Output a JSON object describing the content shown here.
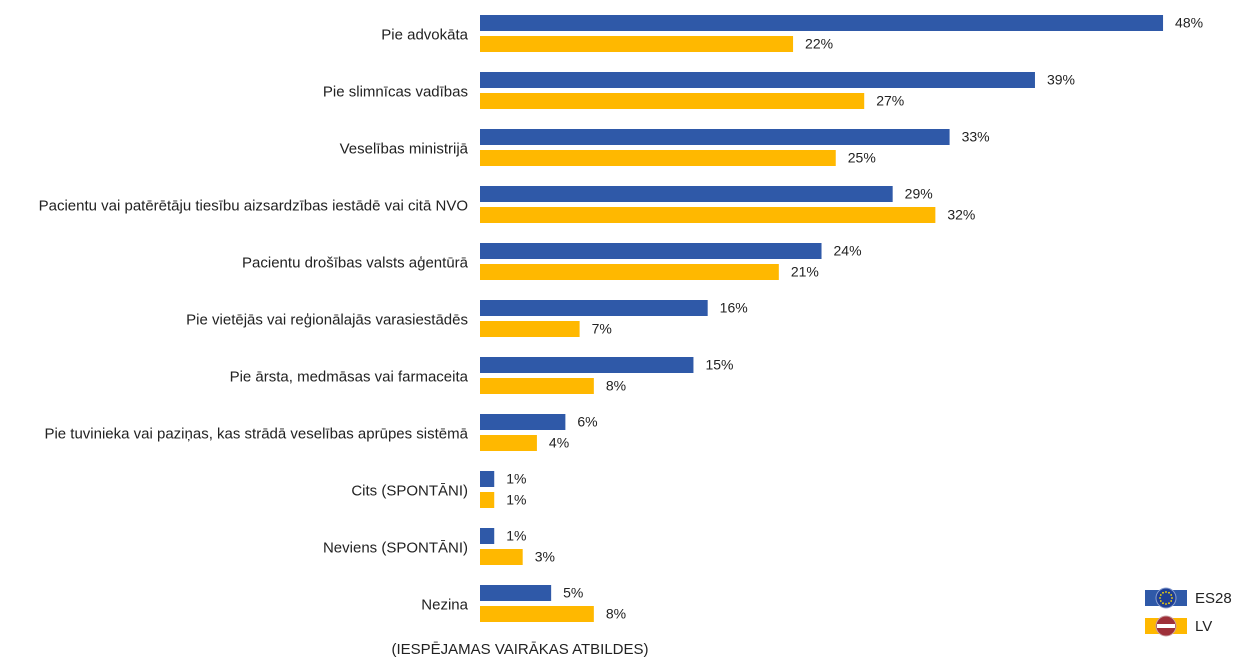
{
  "chart_data": {
    "type": "bar",
    "orientation": "horizontal",
    "categories": [
      "Pie advokāta",
      "Pie slimnīcas vadības",
      "Veselības ministrijā",
      "Pacientu vai patērētāju tiesību aizsardzības iestādē vai citā NVO",
      "Pacientu drošības valsts aģentūrā",
      "Pie vietējās vai reģionālajās varasiestādēs",
      "Pie ārsta, medmāsas vai farmaceita",
      "Pie tuvinieka vai paziņas, kas strādā veselības aprūpes sistēmā",
      "Cits (SPONTĀNI)",
      "Neviens (SPONTĀNI)",
      "Nezina"
    ],
    "series": [
      {
        "name": "ES28",
        "color": "#2f59a8",
        "values": [
          48,
          39,
          33,
          29,
          24,
          16,
          15,
          6,
          1,
          1,
          5
        ],
        "value_labels": [
          "48%",
          "39%",
          "33%",
          "29%",
          "24%",
          "16%",
          "15%",
          "6%",
          "1%",
          "1%",
          "5%"
        ]
      },
      {
        "name": "LV",
        "color": "#ffb800",
        "values": [
          22,
          27,
          25,
          32,
          21,
          7,
          8,
          4,
          1,
          3,
          8
        ],
        "value_labels": [
          "22%",
          "27%",
          "25%",
          "32%",
          "21%",
          "7%",
          "8%",
          "4%",
          "1%",
          "3%",
          "8%"
        ]
      }
    ],
    "xlim": [
      0,
      50
    ],
    "legend": "bottom-right",
    "note": "(IESPĒJAMAS VAIRĀKAS ATBILDES)"
  }
}
